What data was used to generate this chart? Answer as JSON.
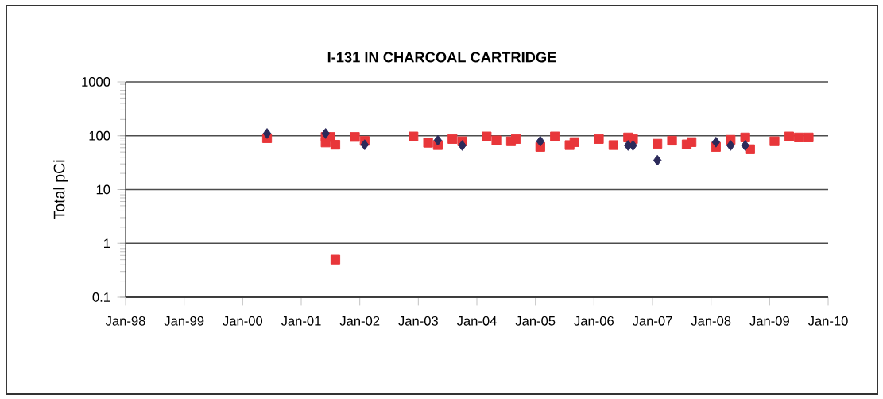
{
  "chart_data": {
    "type": "scatter",
    "title": "I-131 IN CHARCOAL CARTRIDGE",
    "ylabel": "Total pCi",
    "log": "y",
    "grid": "y",
    "xlim": [
      "1998-01",
      "2010-01"
    ],
    "xticks": [
      {
        "value": "1998-01",
        "label": "Jan-98"
      },
      {
        "value": "1999-01",
        "label": "Jan-99"
      },
      {
        "value": "2000-01",
        "label": "Jan-00"
      },
      {
        "value": "2001-01",
        "label": "Jan-01"
      },
      {
        "value": "2002-01",
        "label": "Jan-02"
      },
      {
        "value": "2003-01",
        "label": "Jan-03"
      },
      {
        "value": "2004-01",
        "label": "Jan-04"
      },
      {
        "value": "2005-01",
        "label": "Jan-05"
      },
      {
        "value": "2006-01",
        "label": "Jan-06"
      },
      {
        "value": "2007-01",
        "label": "Jan-07"
      },
      {
        "value": "2008-01",
        "label": "Jan-08"
      },
      {
        "value": "2009-01",
        "label": "Jan-09"
      },
      {
        "value": "2010-01",
        "label": "Jan-10"
      }
    ],
    "ylim": [
      0.1,
      1000
    ],
    "yticks": [
      0.1,
      1,
      10,
      100,
      1000
    ],
    "series": [
      {
        "color": "#2b2a5a",
        "marker": "diamond",
        "x": [
          "2000-06",
          "2001-06",
          "2002-02",
          "2003-05",
          "2003-10",
          "2005-02",
          "2006-08",
          "2006-09",
          "2007-02",
          "2008-02",
          "2008-05",
          "2008-08"
        ],
        "values": [
          110,
          110,
          68,
          82,
          66,
          79,
          66,
          66,
          35,
          76,
          66,
          66
        ]
      },
      {
        "color": "#e8363a",
        "marker": "square",
        "x": [
          "2000-06",
          "2001-06",
          "2001-06",
          "2001-07",
          "2001-08",
          "2001-08",
          "2001-12",
          "2002-02",
          "2002-12",
          "2003-03",
          "2003-05",
          "2003-08",
          "2003-10",
          "2004-03",
          "2004-05",
          "2004-08",
          "2004-09",
          "2005-02",
          "2005-05",
          "2005-08",
          "2005-09",
          "2006-02",
          "2006-05",
          "2006-08",
          "2006-09",
          "2007-02",
          "2007-05",
          "2007-08",
          "2007-09",
          "2008-02",
          "2008-05",
          "2008-08",
          "2008-09",
          "2009-02",
          "2009-05",
          "2009-07",
          "2009-09"
        ],
        "values": [
          90,
          75,
          95,
          95,
          68,
          0.5,
          95,
          80,
          97,
          74,
          67,
          87,
          79,
          97,
          82,
          79,
          87,
          62,
          97,
          67,
          76,
          87,
          67,
          93,
          87,
          71,
          81,
          69,
          76,
          62,
          84,
          93,
          56,
          79,
          97,
          93,
          93
        ]
      }
    ]
  }
}
